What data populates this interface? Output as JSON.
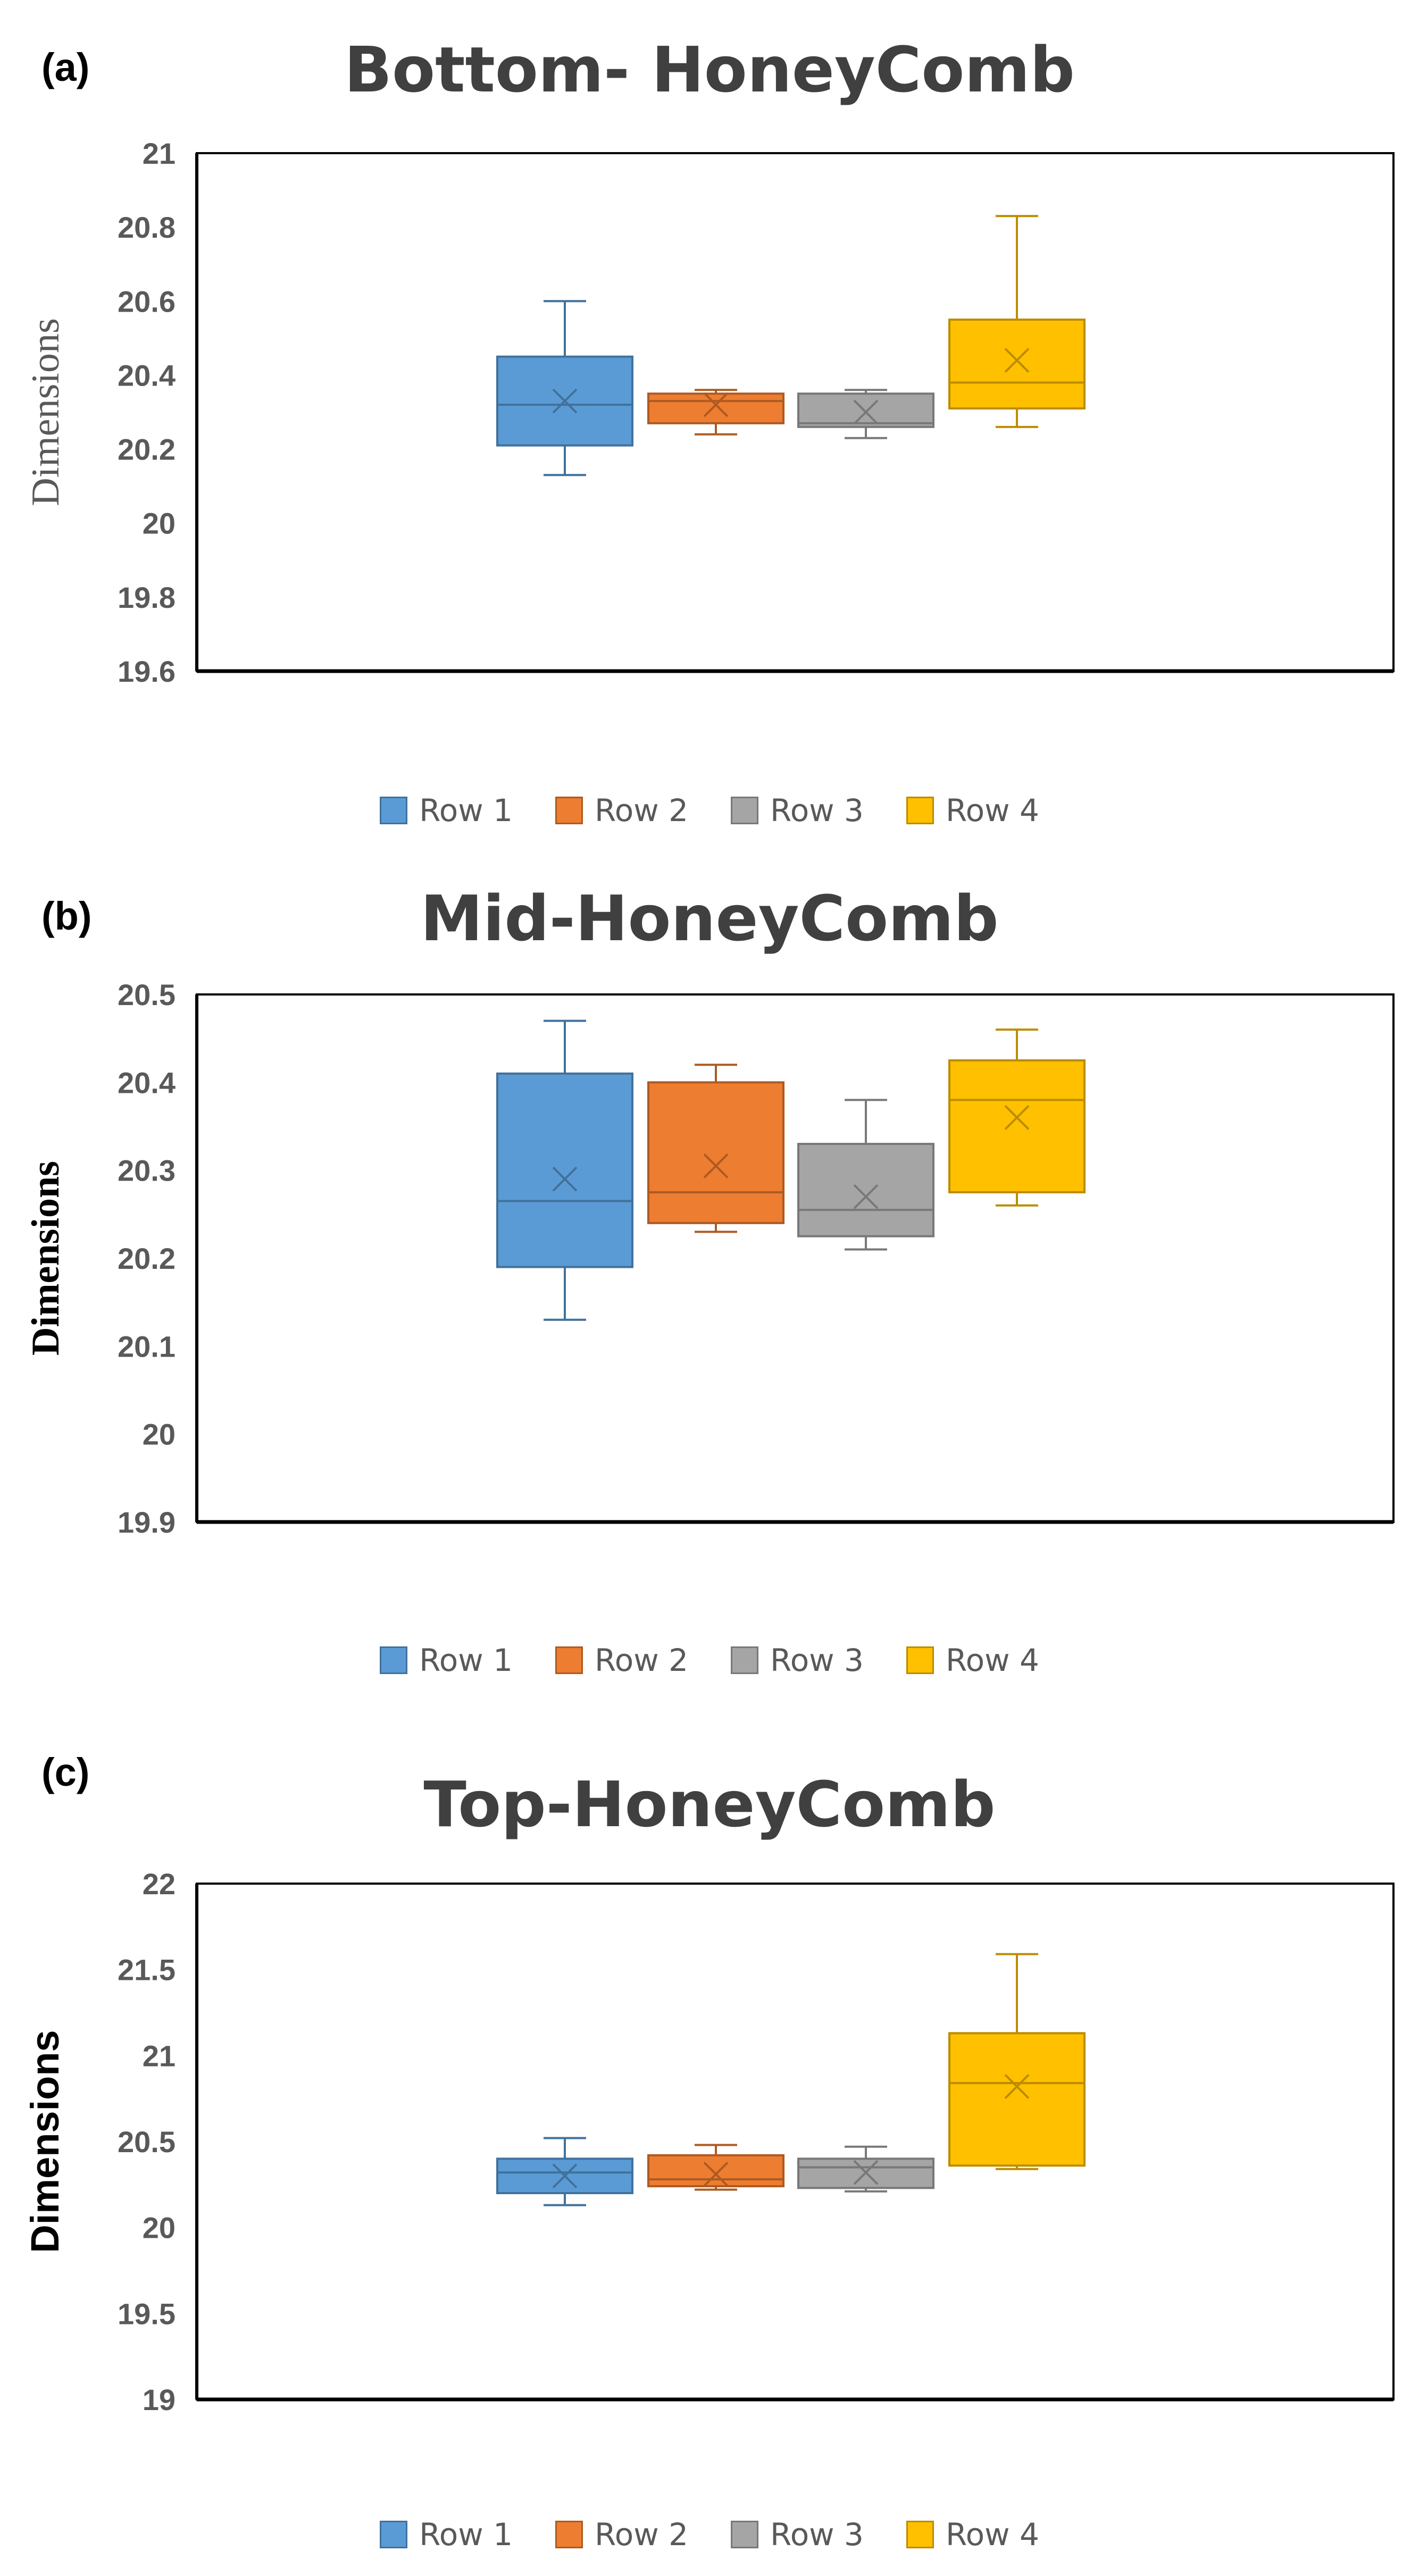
{
  "chart_data": [
    {
      "type": "box",
      "panel_label": "(a)",
      "title": "Bottom- HoneyComb",
      "ylabel": "Dimensions",
      "ylabel_style": "serif",
      "ylim": [
        19.6,
        21
      ],
      "yticks": [
        "21",
        "20.8",
        "20.6",
        "20.4",
        "20.2",
        "20",
        "19.8",
        "19.6"
      ],
      "ytick_values": [
        21,
        20.8,
        20.6,
        20.4,
        20.2,
        20,
        19.8,
        19.6
      ],
      "legend_position": "bottom",
      "series": [
        {
          "name": "Row 1",
          "color": "#5B9BD5",
          "stroke": "#41719C",
          "min": 20.13,
          "q1": 20.21,
          "median": 20.32,
          "q3": 20.45,
          "max": 20.6,
          "mean": 20.33
        },
        {
          "name": "Row 2",
          "color": "#ED7D31",
          "stroke": "#AE5A21",
          "min": 20.24,
          "q1": 20.27,
          "median": 20.33,
          "q3": 20.35,
          "max": 20.36,
          "mean": 20.32
        },
        {
          "name": "Row 3",
          "color": "#A5A5A5",
          "stroke": "#787878",
          "min": 20.23,
          "q1": 20.26,
          "median": 20.27,
          "q3": 20.35,
          "max": 20.36,
          "mean": 20.3
        },
        {
          "name": "Row 4",
          "color": "#FFC000",
          "stroke": "#BC8C00",
          "min": 20.26,
          "q1": 20.31,
          "median": 20.38,
          "q3": 20.55,
          "max": 20.83,
          "mean": 20.44
        }
      ]
    },
    {
      "type": "box",
      "panel_label": "(b)",
      "title": "Mid-HoneyComb",
      "ylabel": "Dimensions",
      "ylabel_style": "serif-bold",
      "ylim": [
        19.9,
        20.5
      ],
      "yticks": [
        "20.5",
        "20.4",
        "20.3",
        "20.2",
        "20.1",
        "20",
        "19.9"
      ],
      "ytick_values": [
        20.5,
        20.4,
        20.3,
        20.2,
        20.1,
        20,
        19.9
      ],
      "legend_position": "bottom",
      "series": [
        {
          "name": "Row 1",
          "color": "#5B9BD5",
          "stroke": "#41719C",
          "min": 20.13,
          "q1": 20.19,
          "median": 20.265,
          "q3": 20.41,
          "max": 20.47,
          "mean": 20.29
        },
        {
          "name": "Row 2",
          "color": "#ED7D31",
          "stroke": "#AE5A21",
          "min": 20.23,
          "q1": 20.24,
          "median": 20.275,
          "q3": 20.4,
          "max": 20.42,
          "mean": 20.305
        },
        {
          "name": "Row 3",
          "color": "#A5A5A5",
          "stroke": "#787878",
          "min": 20.21,
          "q1": 20.225,
          "median": 20.255,
          "q3": 20.33,
          "max": 20.38,
          "mean": 20.27
        },
        {
          "name": "Row 4",
          "color": "#FFC000",
          "stroke": "#BC8C00",
          "min": 20.26,
          "q1": 20.275,
          "median": 20.38,
          "q3": 20.425,
          "max": 20.46,
          "mean": 20.36
        }
      ]
    },
    {
      "type": "box",
      "panel_label": "(c)",
      "title": "Top-HoneyComb",
      "ylabel": "Dimensions",
      "ylabel_style": "sans-bold",
      "ylim": [
        19,
        22
      ],
      "yticks": [
        "22",
        "21.5",
        "21",
        "20.5",
        "20",
        "19.5",
        "19"
      ],
      "ytick_values": [
        22,
        21.5,
        21,
        20.5,
        20,
        19.5,
        19
      ],
      "legend_position": "bottom",
      "series": [
        {
          "name": "Row 1",
          "color": "#5B9BD5",
          "stroke": "#41719C",
          "min": 20.13,
          "q1": 20.2,
          "median": 20.32,
          "q3": 20.4,
          "max": 20.52,
          "mean": 20.3
        },
        {
          "name": "Row 2",
          "color": "#ED7D31",
          "stroke": "#AE5A21",
          "min": 20.22,
          "q1": 20.24,
          "median": 20.28,
          "q3": 20.42,
          "max": 20.48,
          "mean": 20.31
        },
        {
          "name": "Row 3",
          "color": "#A5A5A5",
          "stroke": "#787878",
          "min": 20.21,
          "q1": 20.23,
          "median": 20.35,
          "q3": 20.4,
          "max": 20.47,
          "mean": 20.32
        },
        {
          "name": "Row 4",
          "color": "#FFC000",
          "stroke": "#BC8C00",
          "min": 20.34,
          "q1": 20.36,
          "median": 20.84,
          "q3": 21.13,
          "max": 21.59,
          "mean": 20.82
        }
      ]
    }
  ]
}
